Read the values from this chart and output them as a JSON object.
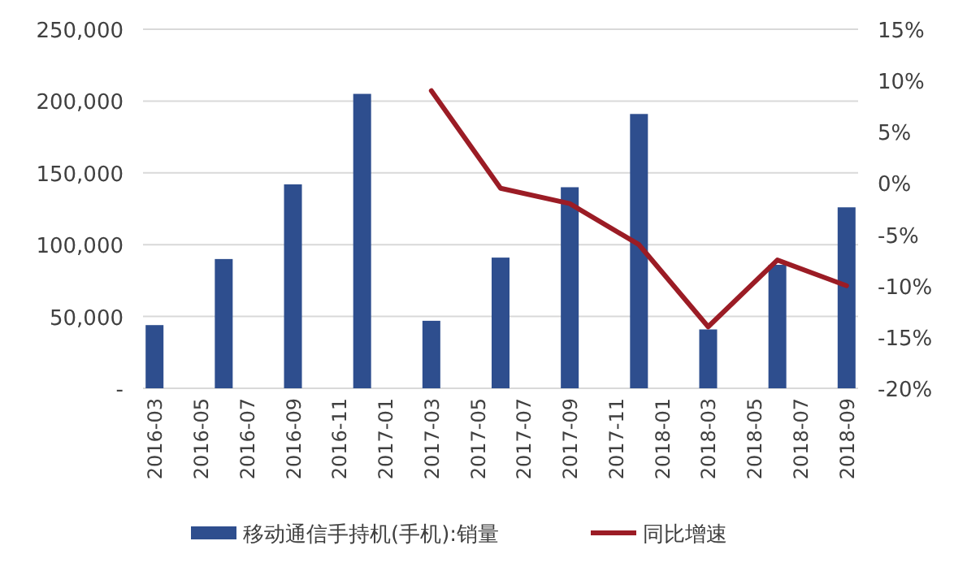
{
  "chart_data": {
    "type": "bar",
    "categories": [
      "2016-03",
      null,
      "2016-05",
      null,
      "2016-07",
      null,
      "2016-09",
      null,
      "2016-11",
      null,
      "2017-01",
      null,
      "2017-03",
      null,
      "2017-05",
      null,
      "2017-07",
      null,
      "2017-09",
      null,
      "2017-11",
      null,
      "2018-01",
      null,
      "2018-03",
      null,
      "2018-05",
      null,
      "2018-07",
      null,
      "2018-09"
    ],
    "series": [
      {
        "name": "移动通信手持机(手机):销量",
        "color": "#2e4e8e",
        "values": [
          44000,
          null,
          null,
          90000,
          null,
          null,
          142000,
          null,
          null,
          205000,
          null,
          null,
          47000,
          null,
          null,
          91000,
          null,
          null,
          140000,
          null,
          null,
          191000,
          null,
          null,
          41000,
          null,
          null,
          86000,
          null,
          null,
          126000
        ]
      },
      {
        "name": "同比增速",
        "type": "line",
        "axis": "y2",
        "color": "#9b1c25",
        "values": [
          null,
          null,
          null,
          null,
          null,
          null,
          null,
          null,
          null,
          null,
          null,
          null,
          9,
          null,
          null,
          -0.5,
          null,
          null,
          -2,
          null,
          null,
          -6,
          null,
          null,
          -14,
          null,
          null,
          -7.5,
          null,
          null,
          -10
        ]
      }
    ],
    "ylim": [
      0,
      250000
    ],
    "yticks": [
      {
        "value": 0,
        "label": "-"
      },
      {
        "value": 50000,
        "label": "50,000"
      },
      {
        "value": 100000,
        "label": "100,000"
      },
      {
        "value": 150000,
        "label": "150,000"
      },
      {
        "value": 200000,
        "label": "200,000"
      },
      {
        "value": 250000,
        "label": "250,000"
      }
    ],
    "y2lim": [
      -20,
      15
    ],
    "y2ticks": [
      {
        "value": -20,
        "label": "-20%"
      },
      {
        "value": -15,
        "label": "-15%"
      },
      {
        "value": -10,
        "label": "-10%"
      },
      {
        "value": -5,
        "label": "-5%"
      },
      {
        "value": 0,
        "label": "0%"
      },
      {
        "value": 5,
        "label": "5%"
      },
      {
        "value": 10,
        "label": "10%"
      },
      {
        "value": 15,
        "label": "15%"
      }
    ],
    "grid": "y",
    "legend": "bottom"
  }
}
